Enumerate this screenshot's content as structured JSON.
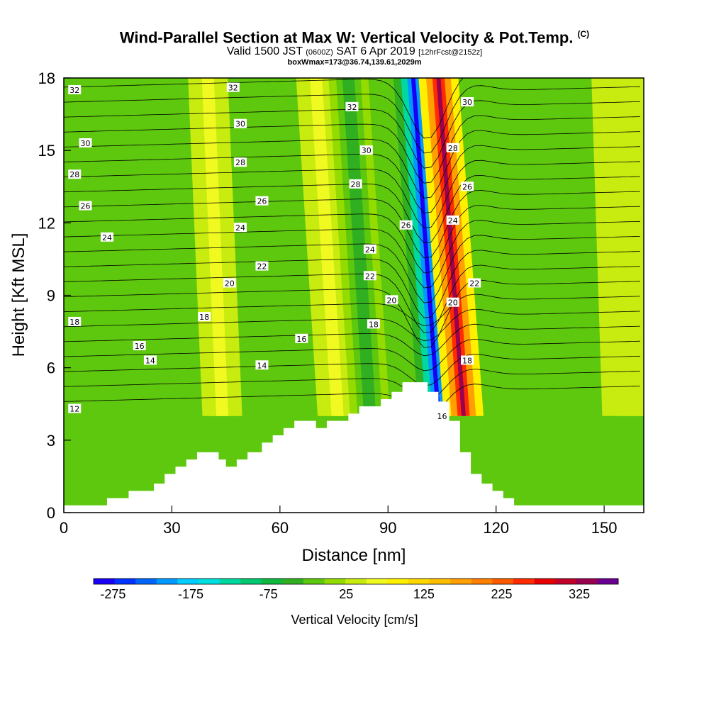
{
  "header": {
    "title": "Wind-Parallel Section at Max W: Vertical Velocity & Pot.Temp.",
    "copyright": "(C)",
    "subtitle_valid": "Valid 1500 JST",
    "subtitle_zulu": "(0600Z)",
    "subtitle_date": "SAT 6 Apr 2019",
    "subtitle_fcst": "[12hrFcst@2152z]",
    "subtitle3": "boxWmax=173@36.74,139.61,2029m"
  },
  "chart_data": {
    "type": "heatmap",
    "title": "Wind-Parallel Section at Max W: Vertical Velocity & Pot.Temp.",
    "xlabel": "Distance [nm]",
    "ylabel": "Height [Kft MSL]",
    "xlim": [
      0,
      161
    ],
    "ylim": [
      0,
      18
    ],
    "x_ticks": [
      0,
      30,
      60,
      90,
      120,
      150
    ],
    "y_ticks": [
      0,
      3,
      6,
      9,
      12,
      15,
      18
    ],
    "colorbar": {
      "label": "Vertical Velocity [cm/s]",
      "tick_values": [
        -275,
        -175,
        -75,
        25,
        125,
        225,
        325
      ],
      "range": [
        -300,
        375
      ],
      "colors": [
        "#1a00f5",
        "#0033ff",
        "#0066ff",
        "#0099ff",
        "#00ccff",
        "#00e0e0",
        "#00d8a0",
        "#00c870",
        "#10b840",
        "#30b020",
        "#5ec80e",
        "#94dc00",
        "#c8ec10",
        "#f0fa20",
        "#fff000",
        "#ffd800",
        "#ffbf00",
        "#ffa000",
        "#ff8000",
        "#ff5a00",
        "#ff2a00",
        "#e80000",
        "#c0002a",
        "#990050",
        "#6a0090"
      ]
    },
    "terrain": [
      [
        0,
        0.3
      ],
      [
        12,
        0.3
      ],
      [
        12,
        0.6
      ],
      [
        18,
        0.6
      ],
      [
        18,
        0.9
      ],
      [
        25,
        0.9
      ],
      [
        25,
        1.2
      ],
      [
        28,
        1.2
      ],
      [
        28,
        1.6
      ],
      [
        31,
        1.6
      ],
      [
        31,
        1.9
      ],
      [
        34,
        1.9
      ],
      [
        34,
        2.2
      ],
      [
        37,
        2.2
      ],
      [
        37,
        2.5
      ],
      [
        43,
        2.5
      ],
      [
        43,
        2.2
      ],
      [
        45,
        2.2
      ],
      [
        45,
        1.9
      ],
      [
        48,
        1.9
      ],
      [
        48,
        2.2
      ],
      [
        51,
        2.2
      ],
      [
        51,
        2.5
      ],
      [
        55,
        2.5
      ],
      [
        55,
        2.9
      ],
      [
        58,
        2.9
      ],
      [
        58,
        3.2
      ],
      [
        61,
        3.2
      ],
      [
        61,
        3.5
      ],
      [
        64,
        3.5
      ],
      [
        64,
        3.8
      ],
      [
        70,
        3.8
      ],
      [
        70,
        3.5
      ],
      [
        73,
        3.5
      ],
      [
        73,
        3.8
      ],
      [
        79,
        3.8
      ],
      [
        79,
        4.1
      ],
      [
        82,
        4.1
      ],
      [
        82,
        4.4
      ],
      [
        88,
        4.4
      ],
      [
        88,
        4.7
      ],
      [
        91,
        4.7
      ],
      [
        91,
        5.0
      ],
      [
        94,
        5.0
      ],
      [
        94,
        5.4
      ],
      [
        101,
        5.4
      ],
      [
        101,
        5.0
      ],
      [
        104,
        5.0
      ],
      [
        104,
        4.6
      ],
      [
        107,
        4.6
      ],
      [
        107,
        3.8
      ],
      [
        110,
        3.8
      ],
      [
        110,
        2.5
      ],
      [
        113,
        2.5
      ],
      [
        113,
        1.6
      ],
      [
        116,
        1.6
      ],
      [
        116,
        1.2
      ],
      [
        119,
        1.2
      ],
      [
        119,
        0.9
      ],
      [
        122,
        0.9
      ],
      [
        122,
        0.6
      ],
      [
        125,
        0.6
      ],
      [
        125,
        0.3
      ],
      [
        161,
        0.3
      ]
    ],
    "w_features": [
      {
        "x0": 104,
        "x1": 97,
        "value": -275
      },
      {
        "x0": 111,
        "x1": 104,
        "value": 325
      },
      {
        "x0": 76,
        "x1": 70,
        "value": 75
      },
      {
        "x0": 85,
        "x1": 79,
        "value": -50
      },
      {
        "x0": 44,
        "x1": 40,
        "value": 75
      },
      {
        "x0": 155,
        "x1": 152,
        "value": 0
      },
      {
        "x0": 160,
        "x1": 159,
        "value": 0
      }
    ],
    "theta_labels": [
      {
        "text": "32",
        "x": 3,
        "y": 17.5
      },
      {
        "text": "30",
        "x": 6,
        "y": 15.3
      },
      {
        "text": "28",
        "x": 3,
        "y": 14.0
      },
      {
        "text": "26",
        "x": 6,
        "y": 12.7
      },
      {
        "text": "24",
        "x": 12,
        "y": 11.4
      },
      {
        "text": "18",
        "x": 3,
        "y": 7.9
      },
      {
        "text": "16",
        "x": 21,
        "y": 6.9
      },
      {
        "text": "14",
        "x": 24,
        "y": 6.3
      },
      {
        "text": "12",
        "x": 3,
        "y": 4.3
      },
      {
        "text": "32",
        "x": 47,
        "y": 17.6
      },
      {
        "text": "30",
        "x": 49,
        "y": 16.1
      },
      {
        "text": "28",
        "x": 49,
        "y": 14.5
      },
      {
        "text": "26",
        "x": 55,
        "y": 12.9
      },
      {
        "text": "24",
        "x": 49,
        "y": 11.8
      },
      {
        "text": "22",
        "x": 55,
        "y": 10.2
      },
      {
        "text": "20",
        "x": 46,
        "y": 9.5
      },
      {
        "text": "18",
        "x": 39,
        "y": 8.1
      },
      {
        "text": "14",
        "x": 55,
        "y": 6.1
      },
      {
        "text": "16",
        "x": 66,
        "y": 7.2
      },
      {
        "text": "32",
        "x": 80,
        "y": 16.8
      },
      {
        "text": "30",
        "x": 84,
        "y": 15.0
      },
      {
        "text": "28",
        "x": 81,
        "y": 13.6
      },
      {
        "text": "24",
        "x": 85,
        "y": 10.9
      },
      {
        "text": "22",
        "x": 85,
        "y": 9.8
      },
      {
        "text": "20",
        "x": 91,
        "y": 8.8
      },
      {
        "text": "18",
        "x": 86,
        "y": 7.8
      },
      {
        "text": "26",
        "x": 95,
        "y": 11.9
      },
      {
        "text": "30",
        "x": 112,
        "y": 17.0
      },
      {
        "text": "28",
        "x": 108,
        "y": 15.1
      },
      {
        "text": "26",
        "x": 112,
        "y": 13.5
      },
      {
        "text": "24",
        "x": 108,
        "y": 12.1
      },
      {
        "text": "22",
        "x": 114,
        "y": 9.5
      },
      {
        "text": "20",
        "x": 108,
        "y": 8.7
      },
      {
        "text": "18",
        "x": 112,
        "y": 6.3
      },
      {
        "text": "16",
        "x": 105,
        "y": 4.0
      }
    ]
  }
}
